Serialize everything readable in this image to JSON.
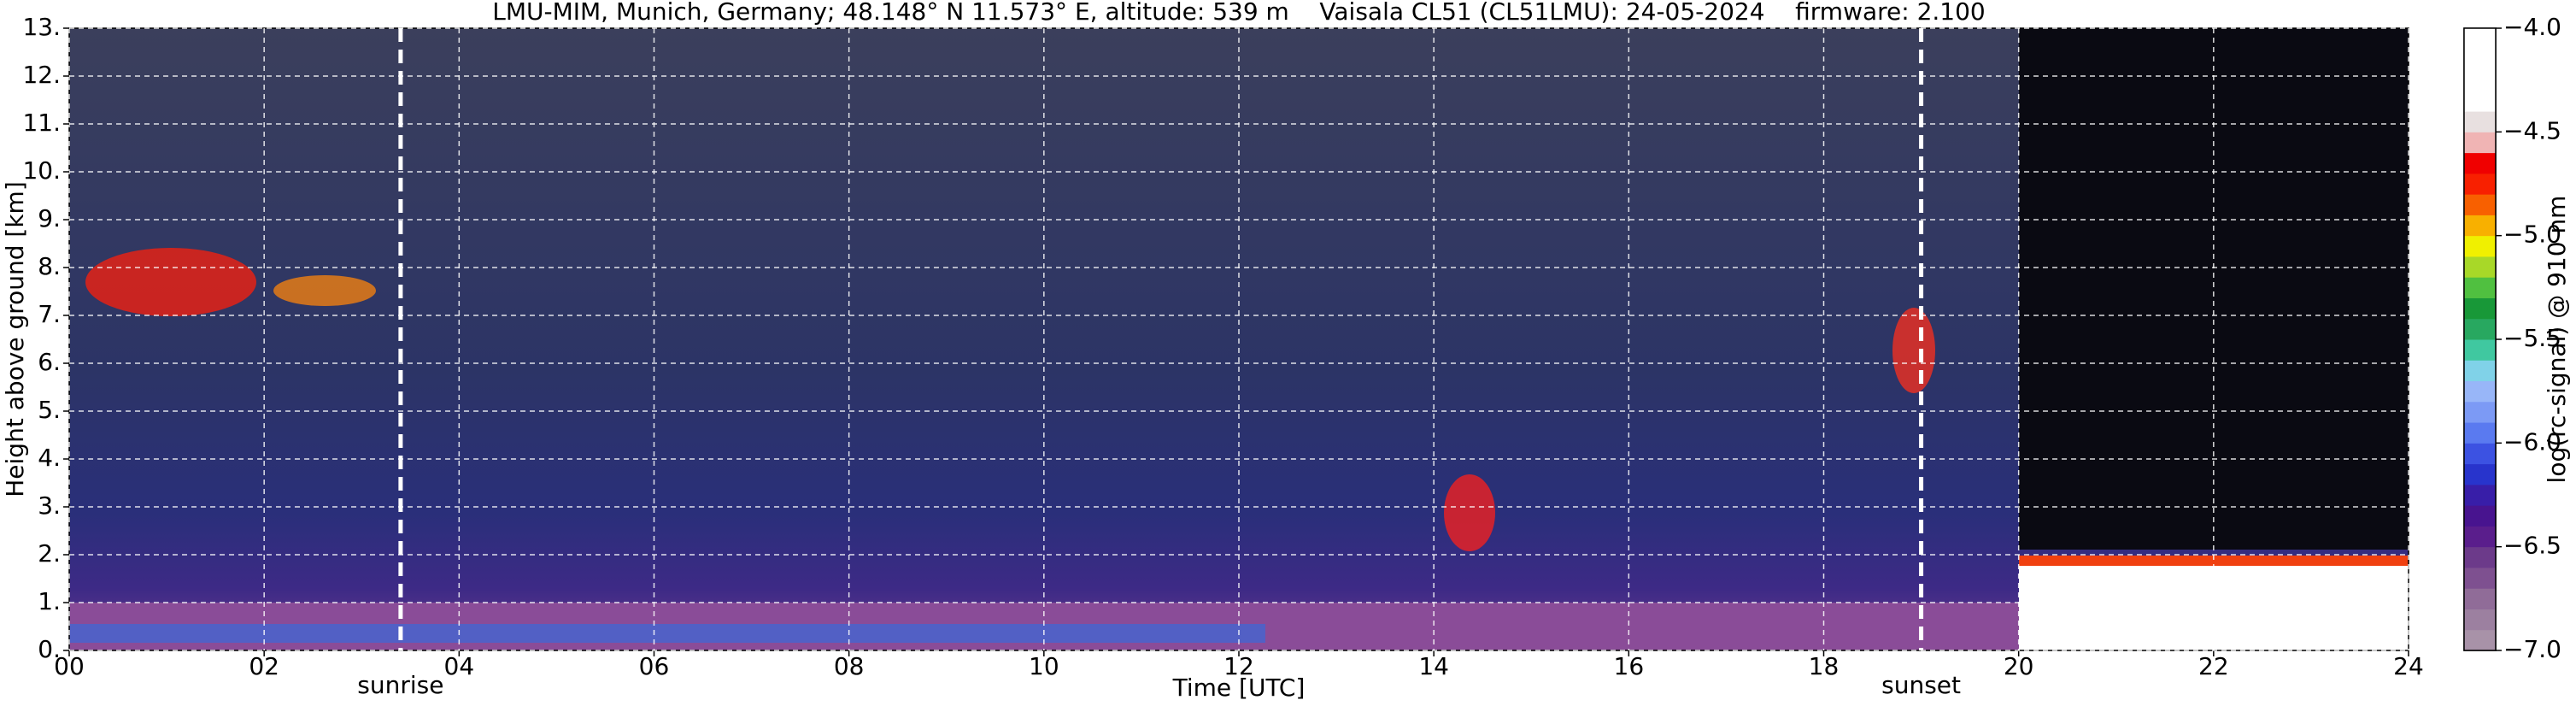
{
  "chart_data": {
    "type": "heatmap",
    "title": "LMU-MIM, Munich, Germany; 48.148° N 11.573° E, altitude: 539 m    Vaisala CL51 (CL51LMU): 24-05-2024    firmware: 2.100",
    "x_label": "Time [UTC]",
    "y_label": "Height above ground [km]",
    "colorbar_label": "log(rc-signal) @ 910 nm",
    "xlim": [
      0,
      24
    ],
    "xticks": [
      {
        "value": 0,
        "label": "00"
      },
      {
        "value": 2,
        "label": "02"
      },
      {
        "value": 4,
        "label": "04"
      },
      {
        "value": 6,
        "label": "06"
      },
      {
        "value": 8,
        "label": "08"
      },
      10,
      12,
      14,
      16,
      18,
      20,
      22,
      24
    ],
    "ylim": [
      0,
      13
    ],
    "yticks": [
      {
        "value": 0,
        "label": "0."
      },
      {
        "value": 1,
        "label": "1."
      },
      {
        "value": 2,
        "label": "2."
      },
      {
        "value": 3,
        "label": "3."
      },
      {
        "value": 4,
        "label": "4."
      },
      {
        "value": 5,
        "label": "5."
      },
      {
        "value": 6,
        "label": "6."
      },
      {
        "value": 7,
        "label": "7."
      },
      {
        "value": 8,
        "label": "8."
      },
      {
        "value": 9,
        "label": "9."
      },
      {
        "value": 10,
        "label": "10."
      },
      {
        "value": 11,
        "label": "11."
      },
      {
        "value": 12,
        "label": "12."
      },
      {
        "value": 13,
        "label": "13."
      }
    ],
    "grid": true,
    "clim": [
      -7,
      -4
    ],
    "cticks": [
      {
        "value": -4,
        "label": "−4.0"
      },
      {
        "value": -4.5,
        "label": "−4.5"
      },
      {
        "value": -5,
        "label": "−5.0"
      },
      {
        "value": -5.5,
        "label": "−5.5"
      },
      {
        "value": -6,
        "label": "−6.0"
      },
      {
        "value": -6.5,
        "label": "−6.5"
      },
      {
        "value": -7,
        "label": "−7.0"
      }
    ],
    "colormap": [
      "#a892a8",
      "#9c80a0",
      "#906c98",
      "#7e5090",
      "#6c3a8a",
      "#5a1e8c",
      "#48148f",
      "#381ea8",
      "#2834cc",
      "#3c52e2",
      "#5a7af0",
      "#7c9af5",
      "#98b6f8",
      "#80d2e8",
      "#40c8a0",
      "#28a860",
      "#189838",
      "#50c040",
      "#a8d828",
      "#f0f000",
      "#f8b000",
      "#f86000",
      "#f82000",
      "#f00000",
      "#f0b4b4",
      "#e8e0e0",
      "#ffffff",
      "#ffffff",
      "#ffffff",
      "#ffffff"
    ],
    "annotations": [
      {
        "label": "sunrise",
        "x": 3.4
      },
      {
        "label": "sunset",
        "x": 19.0
      }
    ]
  }
}
